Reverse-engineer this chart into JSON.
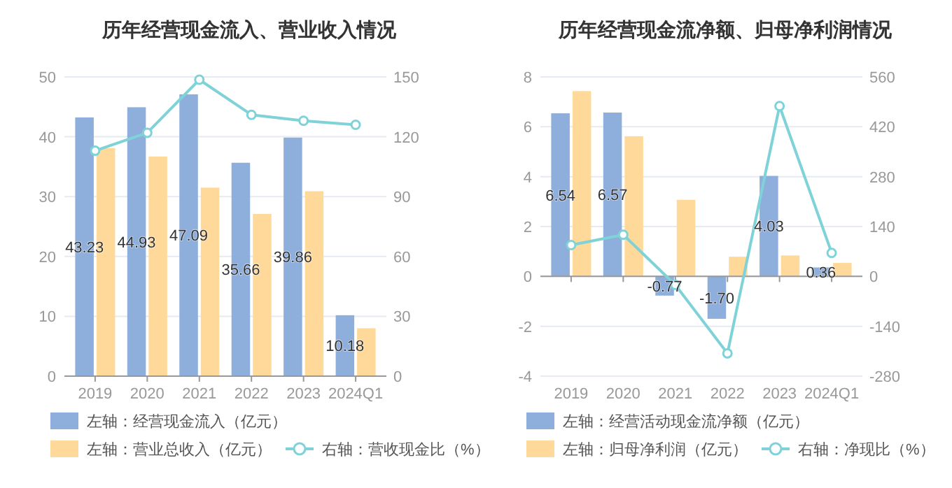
{
  "chart_data": [
    {
      "type": "bar",
      "title": "历年经营现金流入、营业收入情况",
      "categories": [
        "2019",
        "2020",
        "2021",
        "2022",
        "2023",
        "2024Q1"
      ],
      "series": [
        {
          "name": "左轴：经营现金流入（亿元）",
          "color": "#8eaedc",
          "values": [
            43.23,
            44.93,
            47.09,
            35.66,
            39.86,
            10.18
          ],
          "value_labels": [
            "43.23",
            "44.93",
            "47.09",
            "35.66",
            "39.86",
            "10.18"
          ]
        },
        {
          "name": "左轴：营业总收入（亿元）",
          "color": "#ffd99a",
          "values": [
            38.1,
            36.7,
            31.5,
            27.1,
            30.9,
            8.0
          ]
        },
        {
          "name": "右轴：营收现金比（%）",
          "type": "line",
          "axis": "y2",
          "color": "#7fd3d8",
          "values": [
            113,
            122,
            148.6,
            131,
            128,
            126
          ]
        }
      ],
      "ylim": [
        0,
        50
      ],
      "yticks": [
        0,
        10,
        20,
        30,
        40,
        50
      ],
      "y2lim": [
        0,
        150
      ],
      "y2ticks": [
        0,
        30,
        60,
        90,
        120,
        150
      ],
      "grid": "y",
      "legend": "bottom",
      "marker": "circle"
    },
    {
      "type": "bar",
      "title": "历年经营现金流净额、归母净利润情况",
      "categories": [
        "2019",
        "2020",
        "2021",
        "2022",
        "2023",
        "2024Q1"
      ],
      "series": [
        {
          "name": "左轴：经营活动现金流净额（亿元）",
          "color": "#8eaedc",
          "values": [
            6.54,
            6.57,
            -0.77,
            -1.7,
            4.03,
            0.36
          ],
          "value_labels": [
            "6.54",
            "6.57",
            "-0.77",
            "-1.70",
            "4.03",
            "0.36"
          ]
        },
        {
          "name": "左轴：归母净利润（亿元）",
          "color": "#ffd99a",
          "values": [
            7.43,
            5.62,
            3.07,
            0.79,
            0.84,
            0.54
          ]
        },
        {
          "name": "右轴：净现比（%）",
          "type": "line",
          "axis": "y2",
          "color": "#7fd3d8",
          "values": [
            88,
            117,
            -24,
            -216,
            478,
            66
          ]
        }
      ],
      "ylim": [
        -4,
        8
      ],
      "yticks": [
        -4,
        -2,
        0,
        2,
        4,
        6,
        8
      ],
      "y2lim": [
        -280,
        560
      ],
      "y2ticks": [
        -280,
        -140,
        0,
        140,
        280,
        420,
        560
      ],
      "grid": "y",
      "legend": "bottom",
      "marker": "circle"
    }
  ]
}
